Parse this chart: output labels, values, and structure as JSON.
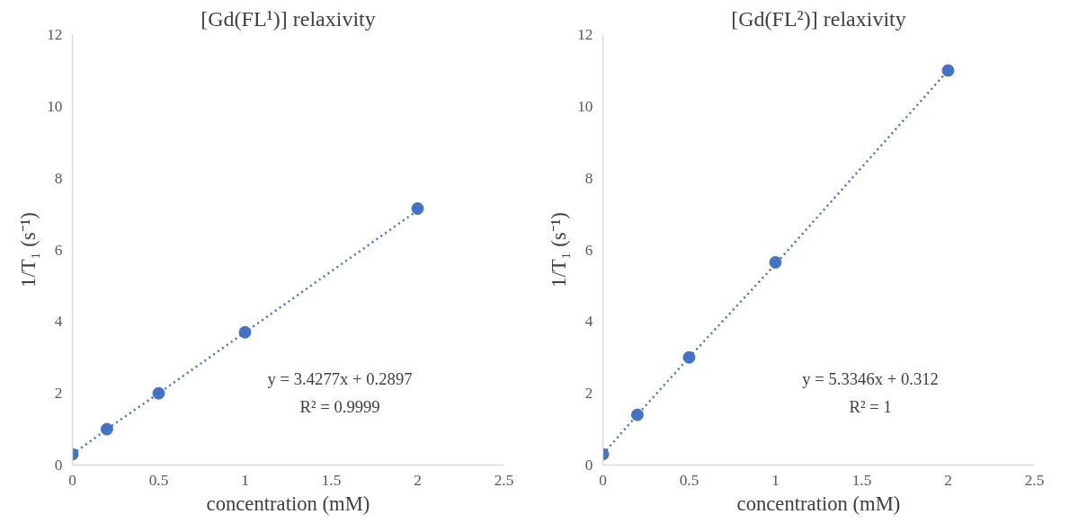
{
  "chart_data": [
    {
      "type": "scatter",
      "title": "[Gd(FL¹)] relaxivity",
      "xlabel": "concentration (mM)",
      "ylabel": "1/T₁ (s⁻¹)",
      "x": [
        0,
        0.2,
        0.5,
        1,
        2
      ],
      "marker": "circle",
      "series": [
        {
          "color": "#4472c4",
          "values": [
            0.3,
            1.0,
            2.0,
            3.7,
            7.15
          ]
        },
        {
          "type": "line",
          "color": "#4472c4",
          "line_style": "dotted",
          "marker": "none",
          "values": [
            0.3,
            1.0,
            2.0,
            3.7,
            7.1
          ]
        }
      ],
      "xlim": [
        0,
        2.5
      ],
      "xticks": [
        0,
        0.5,
        1,
        1.5,
        2,
        2.5
      ],
      "ylim": [
        0,
        12
      ],
      "yticks": [
        0,
        2,
        4,
        6,
        8,
        10,
        12
      ],
      "annotations": [
        "y = 3.4277x + 0.2897",
        "R² = 0.9999"
      ]
    },
    {
      "type": "scatter",
      "title": "[Gd(FL²)] relaxivity",
      "xlabel": "concentration (mM)",
      "ylabel": "1/T₁ (s⁻¹)",
      "x": [
        0,
        0.2,
        0.5,
        1,
        2
      ],
      "marker": "circle",
      "series": [
        {
          "color": "#4472c4",
          "values": [
            0.3,
            1.4,
            3.0,
            5.65,
            11.0
          ]
        },
        {
          "type": "line",
          "color": "#4472c4",
          "line_style": "dotted",
          "marker": "none",
          "values": [
            0.3,
            1.4,
            3.0,
            5.6,
            11.0
          ]
        }
      ],
      "xlim": [
        0,
        2.5
      ],
      "xticks": [
        0,
        0.5,
        1,
        1.5,
        2,
        2.5
      ],
      "ylim": [
        0,
        12
      ],
      "yticks": [
        0,
        2,
        4,
        6,
        8,
        10,
        12
      ],
      "annotations": [
        "y = 5.3346x + 0.312",
        "R² = 1"
      ]
    }
  ]
}
